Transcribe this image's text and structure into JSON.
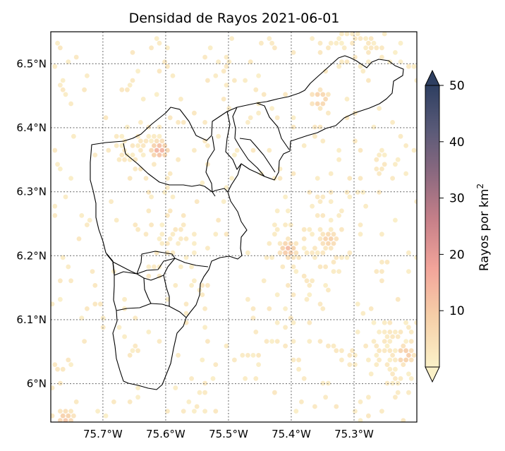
{
  "title": "Densidad de Rayos 2021-06-01",
  "map": {
    "lon_range": [
      -75.783,
      -75.2
    ],
    "lat_range": [
      5.94,
      6.55
    ],
    "x_ticks": [
      {
        "value": -75.7,
        "label": "75.7°W"
      },
      {
        "value": -75.6,
        "label": "75.6°W"
      },
      {
        "value": -75.5,
        "label": "75.5°W"
      },
      {
        "value": -75.4,
        "label": "75.4°W"
      },
      {
        "value": -75.3,
        "label": "75.3°W"
      }
    ],
    "y_ticks": [
      {
        "value": 6.5,
        "label": "6.5°N"
      },
      {
        "value": 6.4,
        "label": "6.4°N"
      },
      {
        "value": 6.3,
        "label": "6.3°N"
      },
      {
        "value": 6.2,
        "label": "6.2°N"
      },
      {
        "value": 6.1,
        "label": "6.1°N"
      },
      {
        "value": 6.0,
        "label": "6°N"
      }
    ],
    "gridlines": "dotted"
  },
  "colorbar": {
    "label_text": "Rayos por km",
    "label_sup": "2",
    "range": [
      0,
      50
    ],
    "ticks": [
      {
        "value": 10,
        "label": "10"
      },
      {
        "value": 20,
        "label": "20"
      },
      {
        "value": 30,
        "label": "30"
      },
      {
        "value": 40,
        "label": "40"
      },
      {
        "value": 50,
        "label": "50"
      }
    ],
    "extend": "both",
    "stops": [
      "#fbf1c8",
      "#f6cfa8",
      "#f2a49a",
      "#c78089",
      "#8e6a80",
      "#5a5a78",
      "#2e3f61"
    ]
  },
  "chart_data": {
    "type": "heatmap",
    "title": "Densidad de Rayos 2021-06-01",
    "description_type": "hexbin lightning density over municipalities",
    "hotspots": [
      {
        "lon": -75.61,
        "lat": 6.365,
        "value": 18
      },
      {
        "lon": -75.355,
        "lat": 6.445,
        "value": 12
      },
      {
        "lon": -75.34,
        "lat": 6.225,
        "value": 10
      },
      {
        "lon": -75.405,
        "lat": 6.21,
        "value": 14
      },
      {
        "lon": -75.22,
        "lat": 6.045,
        "value": 14
      },
      {
        "lon": -75.76,
        "lat": 5.945,
        "value": 12
      }
    ]
  }
}
